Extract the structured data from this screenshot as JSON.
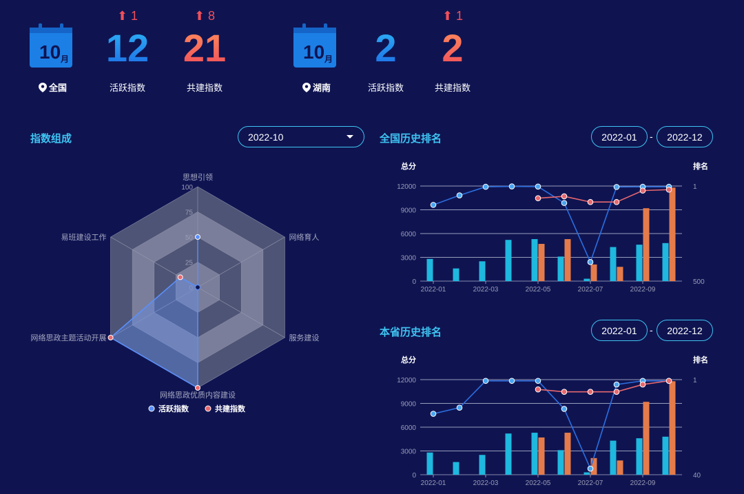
{
  "kpis": {
    "national": {
      "calendar_day": "10",
      "calendar_unit": "月",
      "location": "全国",
      "active": {
        "value": "12",
        "delta": "1",
        "label": "活跃指数"
      },
      "coconstruct": {
        "value": "21",
        "delta": "8",
        "label": "共建指数"
      }
    },
    "province": {
      "calendar_day": "10",
      "calendar_unit": "月",
      "location": "湖南",
      "active": {
        "value": "2",
        "delta": "",
        "label": "活跃指数"
      },
      "coconstruct": {
        "value": "2",
        "delta": "1",
        "label": "共建指数"
      }
    }
  },
  "composition": {
    "title": "指数组成",
    "month_select": "2022-10",
    "legend": [
      "活跃指数",
      "共建指数"
    ],
    "radar": {
      "type": "radar",
      "indicators": [
        "思想引领",
        "网络育人",
        "服务建设",
        "网络思政优质内容建设",
        "网络思政主题活动开展",
        "易班建设工作"
      ],
      "max": 100,
      "ticks": [
        "100",
        "75",
        "50",
        "25",
        "0"
      ],
      "series": [
        {
          "name": "活跃指数",
          "color": "#5b8ff9",
          "values": [
            50,
            0,
            0,
            0,
            0,
            0
          ]
        },
        {
          "name": "共建指数",
          "color": "#e8686e",
          "values": [
            0,
            0,
            0,
            100,
            100,
            20
          ]
        }
      ]
    }
  },
  "national_history": {
    "title": "全国历史排名",
    "start": "2022-01",
    "end": "2022-12",
    "sep": "-",
    "chart": {
      "type": "bar+line",
      "y_left_label": "总分",
      "y_right_label": "排名",
      "y_left_ticks": [
        "12000",
        "9000",
        "6000",
        "3000",
        "0"
      ],
      "y_left_range": [
        0,
        12000
      ],
      "y_right_ticks": [
        "1",
        "500"
      ],
      "y_right_range": [
        1,
        500
      ],
      "x_labels": [
        "2022-01",
        "2022-03",
        "2022-05",
        "2022-07",
        "2022-09"
      ],
      "categories": [
        "2022-01",
        "2022-02",
        "2022-03",
        "2022-04",
        "2022-05",
        "2022-06",
        "2022-07",
        "2022-08",
        "2022-09",
        "2022-10"
      ],
      "series": [
        {
          "name": "活跃指数",
          "kind": "bar",
          "color": "#1fb8de",
          "values": [
            2800,
            1600,
            2500,
            5200,
            5300,
            3100,
            300,
            4300,
            4600,
            4800
          ]
        },
        {
          "name": "共建指数",
          "kind": "bar",
          "color": "#e57b4a",
          "values": [
            null,
            null,
            null,
            null,
            4700,
            5300,
            2100,
            1800,
            9200,
            11800
          ]
        },
        {
          "name": "活跃指数",
          "kind": "line",
          "color": "#2c6fe0",
          "values": [
            100,
            50,
            5,
            3,
            4,
            90,
            400,
            6,
            5,
            5
          ]
        },
        {
          "name": "共建指数",
          "kind": "line",
          "color": "#e8686e",
          "values": [
            null,
            null,
            null,
            null,
            65,
            55,
            85,
            85,
            25,
            20
          ]
        }
      ]
    }
  },
  "province_history": {
    "title": "本省历史排名",
    "start": "2022-01",
    "end": "2022-12",
    "sep": "-",
    "chart": {
      "type": "bar+line",
      "y_left_label": "总分",
      "y_right_label": "排名",
      "y_left_ticks": [
        "12000",
        "9000",
        "6000",
        "3000",
        "0"
      ],
      "y_left_range": [
        0,
        12000
      ],
      "y_right_ticks": [
        "1",
        "40"
      ],
      "y_right_range": [
        1,
        40
      ],
      "x_labels": [
        "2022-01",
        "2022-03",
        "2022-05",
        "2022-07",
        "2022-09"
      ],
      "categories": [
        "2022-01",
        "2022-02",
        "2022-03",
        "2022-04",
        "2022-05",
        "2022-06",
        "2022-07",
        "2022-08",
        "2022-09",
        "2022-10"
      ],
      "series": [
        {
          "name": "活跃指数",
          "kind": "bar",
          "color": "#1fb8de",
          "values": [
            2800,
            1600,
            2500,
            5200,
            5300,
            3100,
            300,
            4300,
            4600,
            4800
          ]
        },
        {
          "name": "共建指数",
          "kind": "bar",
          "color": "#e57b4a",
          "values": [
            null,
            null,
            null,
            null,
            4700,
            5300,
            2100,
            1800,
            9200,
            11800
          ]
        },
        {
          "name": "活跃指数",
          "kind": "line",
          "color": "#2c6fe0",
          "values": [
            15,
            12.5,
            1.5,
            1.5,
            1.5,
            13,
            37.5,
            3,
            1.5,
            1.5
          ]
        },
        {
          "name": "共建指数",
          "kind": "line",
          "color": "#e8686e",
          "values": [
            null,
            null,
            null,
            null,
            5,
            6,
            6,
            6,
            3,
            1.5
          ]
        }
      ]
    }
  }
}
